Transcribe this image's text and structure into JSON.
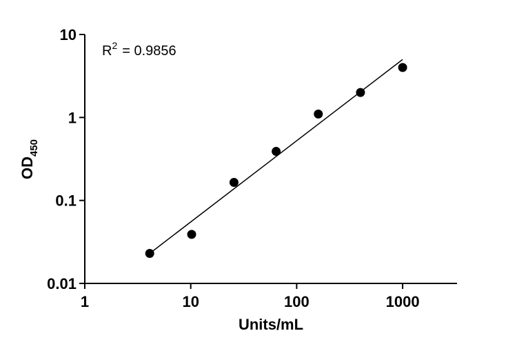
{
  "chart_data": {
    "type": "scatter",
    "x_scale": "log",
    "y_scale": "log",
    "xlim": [
      1,
      3000
    ],
    "ylim": [
      0.01,
      10
    ],
    "x_ticks": [
      1,
      10,
      100,
      1000
    ],
    "x_tick_labels": [
      "1",
      "10",
      "100",
      "1000"
    ],
    "y_ticks": [
      0.01,
      0.1,
      1,
      10
    ],
    "y_tick_labels": [
      "0.01",
      "0.1",
      "1",
      "10"
    ],
    "xlabel": "Units/mL",
    "ylabel_main": "OD",
    "ylabel_sub": "450",
    "annotation": {
      "r2_label": "R",
      "r2_superscript": "2",
      "r2_value_text": "= 0.9856"
    },
    "grid": false,
    "legend": "none",
    "series": [
      {
        "x": [
          4.1,
          10.2,
          25.6,
          64,
          160,
          400,
          1000
        ],
        "y": [
          0.023,
          0.039,
          0.165,
          0.39,
          1.1,
          2.0,
          4.0
        ]
      }
    ],
    "fit_line": {
      "x": [
        4.1,
        1000
      ],
      "y": [
        0.023,
        5.0
      ]
    },
    "colors": {
      "marker": "#000000",
      "line": "#000000",
      "axis": "#000000"
    }
  }
}
